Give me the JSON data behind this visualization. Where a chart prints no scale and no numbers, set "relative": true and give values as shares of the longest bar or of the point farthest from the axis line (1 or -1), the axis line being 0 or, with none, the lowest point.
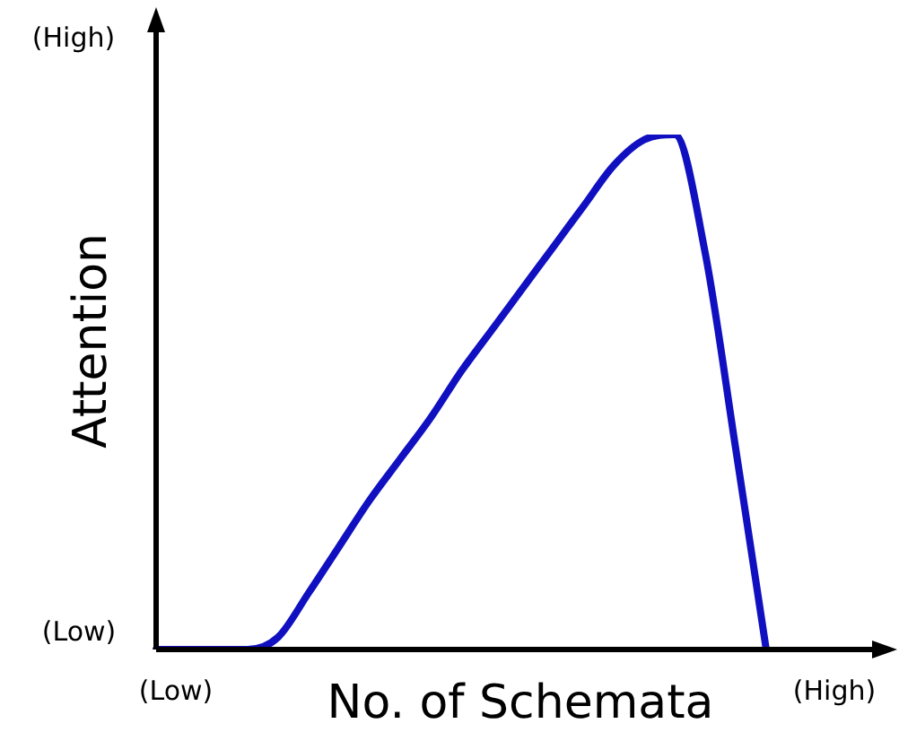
{
  "chart_data": {
    "type": "line",
    "relative": true,
    "xlabel": "No. of Schemata",
    "ylabel": "Attention",
    "annotations": [
      "(High)",
      "(Low)",
      "(Low)",
      "(High)"
    ],
    "categories": [
      null,
      null,
      null,
      null,
      null,
      null,
      null,
      null,
      null,
      null,
      null,
      null,
      null,
      null,
      null,
      null,
      null,
      null,
      null,
      null,
      null,
      null,
      null,
      null,
      null
    ],
    "series": [
      {
        "color": "#1010c0",
        "values": [
          0,
          0,
          0,
          0,
          0.024,
          0.11,
          0.2,
          0.29,
          0.37,
          0.45,
          0.54,
          0.62,
          0.7,
          0.78,
          0.86,
          0.94,
          0.99,
          1,
          0.77,
          0.39,
          0,
          null,
          null,
          null,
          null
        ]
      }
    ],
    "legend": false,
    "marker": "none",
    "line_style": "solid"
  }
}
